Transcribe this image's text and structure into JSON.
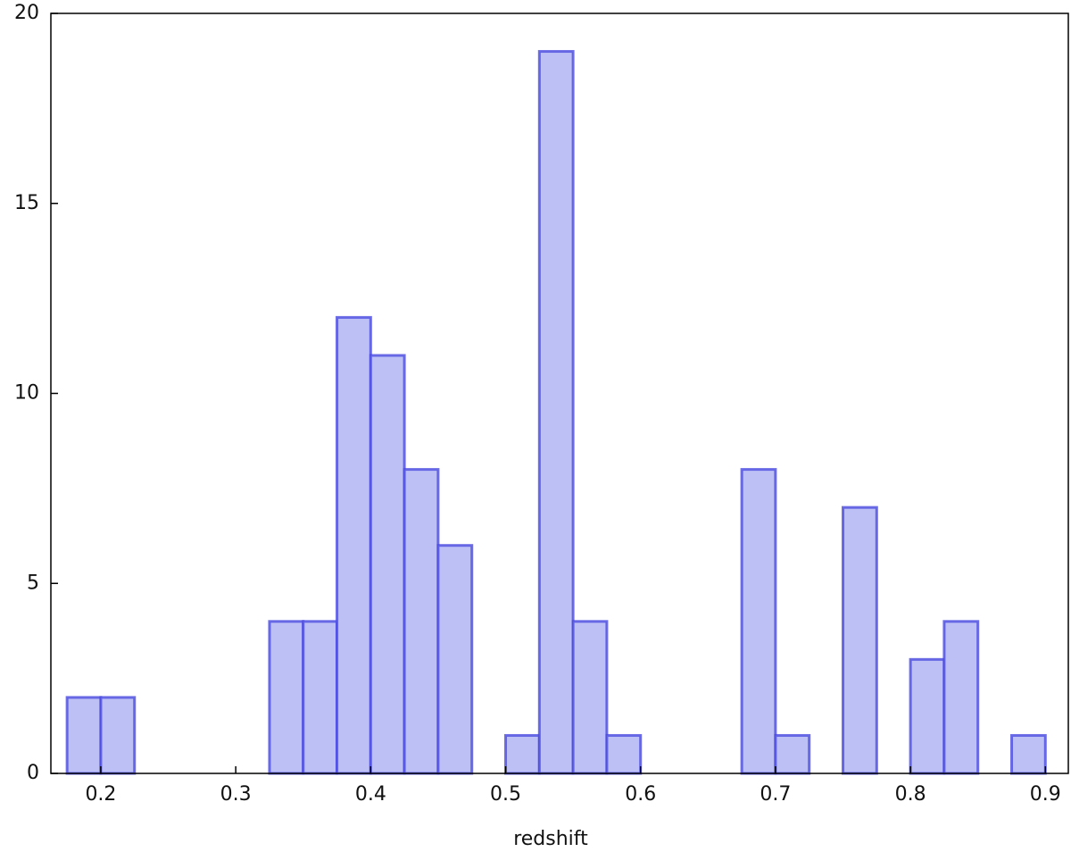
{
  "chart_data": {
    "type": "histogram",
    "x_label": "redshift",
    "bins": [
      0.175,
      0.2,
      0.225,
      0.25,
      0.275,
      0.3,
      0.325,
      0.35,
      0.375,
      0.4,
      0.425,
      0.45,
      0.475,
      0.5,
      0.525,
      0.55,
      0.575,
      0.6,
      0.625,
      0.65,
      0.675,
      0.7,
      0.725,
      0.75,
      0.775,
      0.8,
      0.825,
      0.85,
      0.875,
      0.9
    ],
    "counts": [
      2,
      2,
      0,
      0,
      0,
      0,
      4,
      4,
      12,
      11,
      8,
      6,
      0,
      1,
      19,
      4,
      1,
      0,
      0,
      0,
      8,
      1,
      0,
      7,
      0,
      3,
      4,
      0,
      1
    ],
    "color": "#bcc0f5",
    "edge_color": "#4a4ae0",
    "xlim": [
      0.163,
      0.917
    ],
    "ylim": [
      0,
      20
    ],
    "xticks": [
      0.2,
      0.3,
      0.4,
      0.5,
      0.6,
      0.7,
      0.8,
      0.9
    ],
    "yticks": [
      0,
      5,
      10,
      15,
      20
    ]
  }
}
